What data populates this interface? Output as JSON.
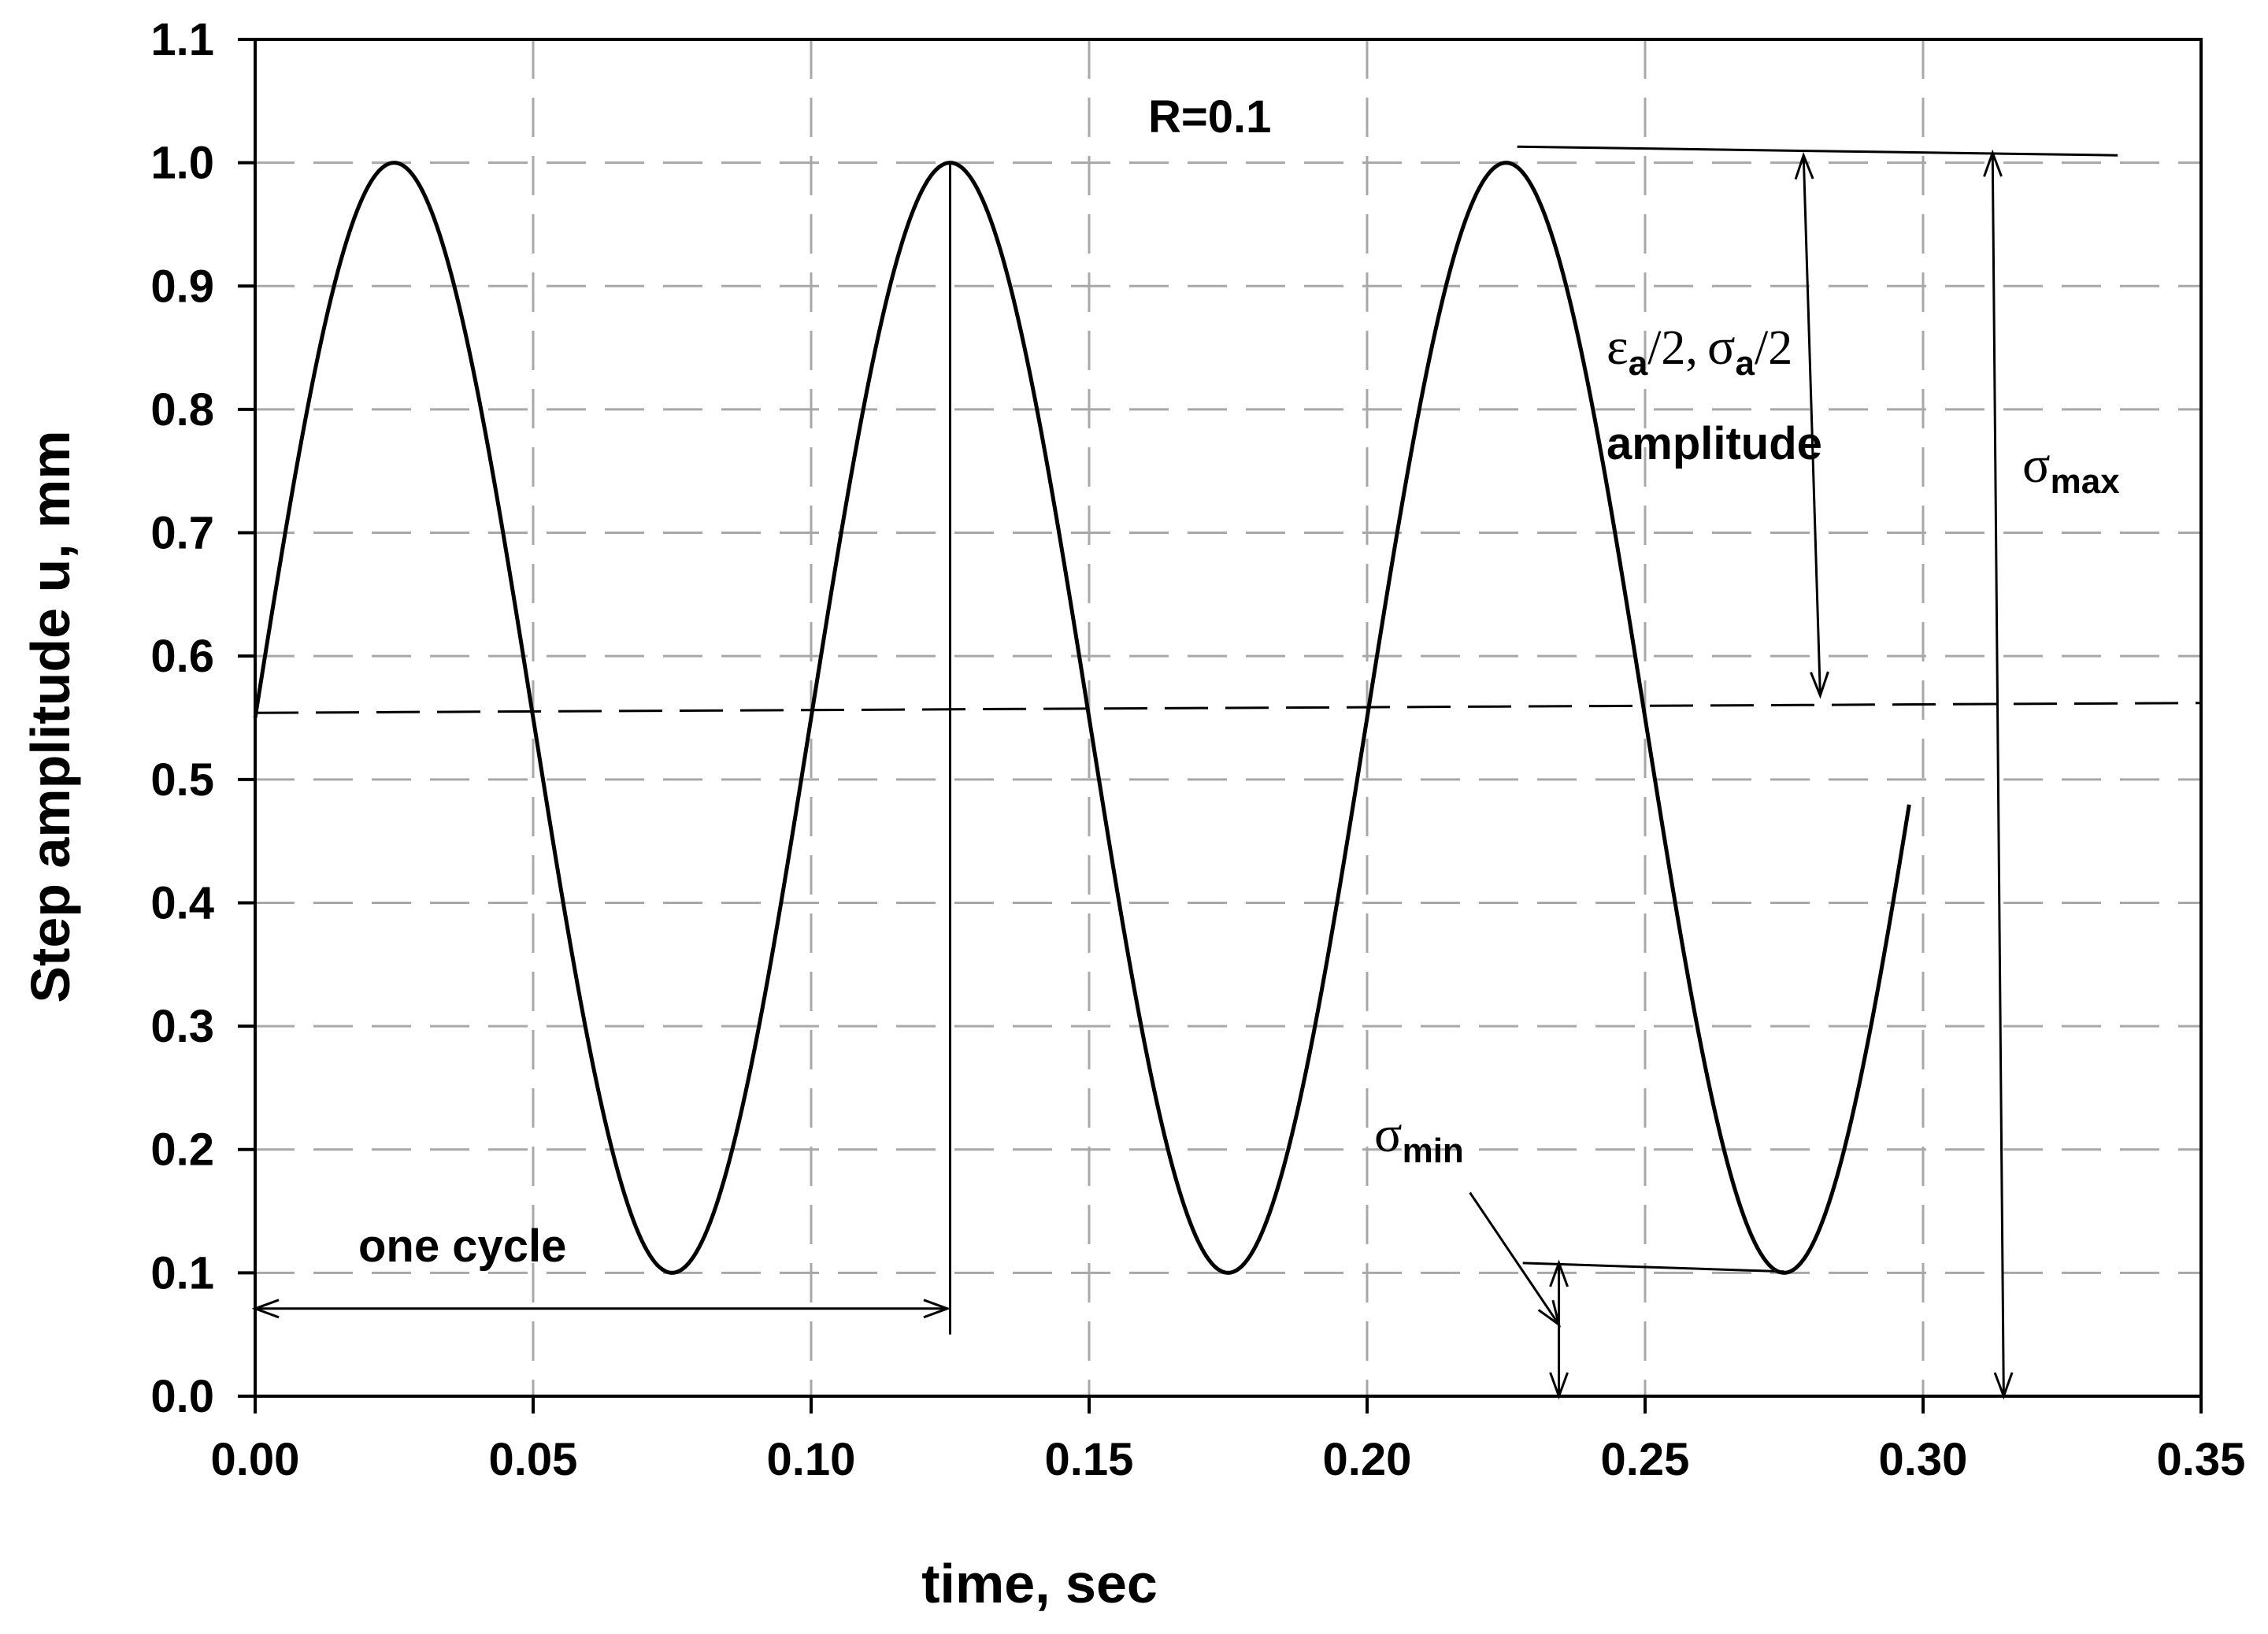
{
  "chart_data": {
    "type": "line",
    "title": "",
    "xlabel": "time, sec",
    "ylabel": "Step amplitude u, mm",
    "xlim": [
      0,
      0.35
    ],
    "ylim": [
      0,
      1.1
    ],
    "x_ticks": [
      "0.00",
      "0.05",
      "0.10",
      "0.15",
      "0.20",
      "0.25",
      "0.30",
      "0.35"
    ],
    "y_ticks": [
      "0.0",
      "0.1",
      "0.2",
      "0.3",
      "0.4",
      "0.5",
      "0.6",
      "0.7",
      "0.8",
      "0.9",
      "1.0",
      "1.1"
    ],
    "grid": true,
    "legend": "none",
    "series": [
      {
        "style": "solid",
        "function": "sine",
        "mean": 0.55,
        "amplitude": 0.45,
        "period": 0.1,
        "x_range": [
          0,
          0.2975
        ],
        "points": [
          {
            "x": 0.0,
            "y": 0.55
          },
          {
            "x": 0.025,
            "y": 1.0
          },
          {
            "x": 0.05,
            "y": 0.55
          },
          {
            "x": 0.075,
            "y": 0.1
          },
          {
            "x": 0.1,
            "y": 0.55
          },
          {
            "x": 0.125,
            "y": 1.0
          },
          {
            "x": 0.15,
            "y": 0.55
          },
          {
            "x": 0.175,
            "y": 0.1
          },
          {
            "x": 0.2,
            "y": 0.55
          },
          {
            "x": 0.225,
            "y": 1.0
          },
          {
            "x": 0.25,
            "y": 0.55
          },
          {
            "x": 0.275,
            "y": 0.1
          },
          {
            "x": 0.2975,
            "y": 0.47
          }
        ]
      }
    ],
    "reference_lines": {
      "mean_dashed": {
        "y": 0.557
      },
      "max_line": {
        "y": 1.006,
        "x_from": 0.227,
        "x_to": 0.335
      },
      "min_line": {
        "y": 0.103,
        "x_from": 0.228,
        "x_to": 0.275
      },
      "cycle_marker": {
        "x": 0.125
      }
    },
    "annotations": {
      "r_value": "R=0.1",
      "one_cycle": "one cycle",
      "eps_sym": "ε",
      "sigma_sym": "σ",
      "sub_a": "a",
      "half": "/2,",
      "half_end": "/2",
      "amplitude": "amplitude",
      "sigma_max_sub": "max",
      "sigma_min_sub": "min"
    }
  }
}
